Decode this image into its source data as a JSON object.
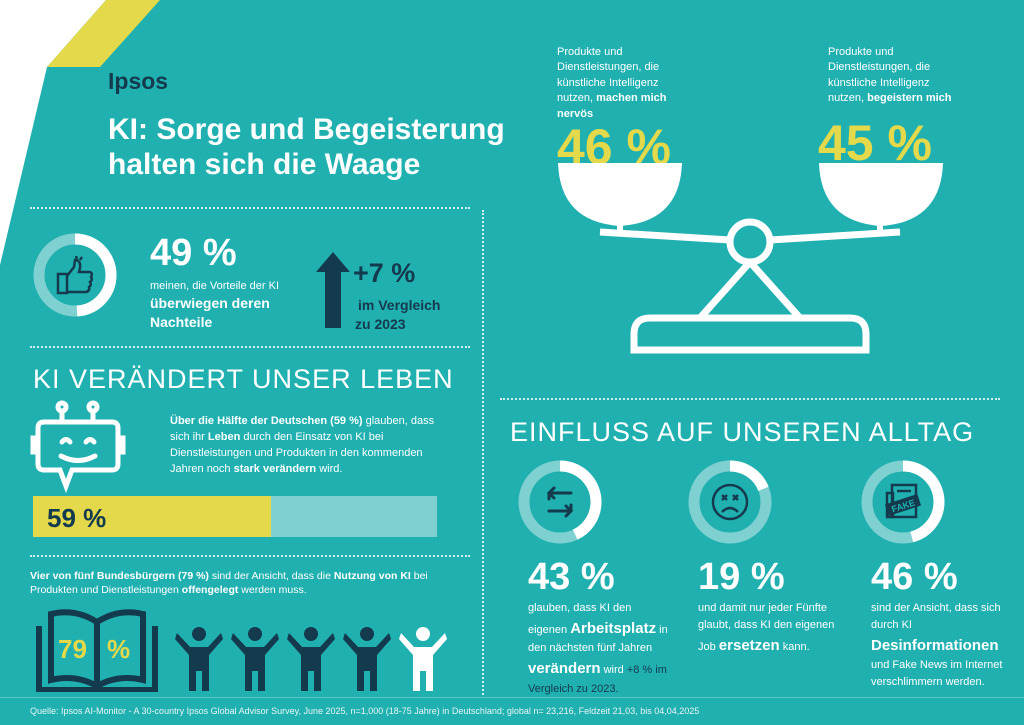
{
  "colors": {
    "background": "#20b0b0",
    "accent": "#e3d94a",
    "dark": "#143a4e",
    "light": "#7fd0d0",
    "white": "#ffffff"
  },
  "brand": "Ipsos",
  "title": {
    "line1": "KI: Sorge und Begeisterung",
    "line2": "halten sich die Waage"
  },
  "scale": {
    "left": {
      "label": "Produkte und Dienstleistungen, die künstliche Intelligenz nutzen,",
      "bold": "machen mich nervös",
      "value": "46 %"
    },
    "right": {
      "label": "Produkte und Dienstleistungen, die künstliche Intelligenz nutzen,",
      "bold": "begeistern mich",
      "value": "45 %"
    }
  },
  "benefits": {
    "value": "49 %",
    "percent": 49,
    "icon": "thumbs-up-icon",
    "text": "meinen, die Vorteile der KI",
    "bold1": "überwiegen deren",
    "bold2": "Nachteile",
    "change": "+7 %",
    "change_line1": "im Vergleich",
    "change_line2": "zu 2023"
  },
  "life": {
    "heading": "KI VERÄNDERT UNSER LEBEN",
    "icon": "robot-chat-icon",
    "p": [
      {
        "t": "Über die Hälfte der Deutschen (59 %)",
        "b": true
      },
      {
        "t": " glauben, dass sich ihr ",
        "b": false
      },
      {
        "t": "Leben",
        "b": true
      },
      {
        "t": " durch den Einsatz von KI bei Dienstleistungen und Produkten in den kommenden Jahren noch ",
        "b": false
      },
      {
        "t": "stark verändern",
        "b": true
      },
      {
        "t": " wird.",
        "b": false
      }
    ],
    "bar_label": "59 %",
    "bar_percent": 59
  },
  "disclosure": {
    "p": [
      {
        "t": "Vier von fünf Bundesbürgern (79 %)",
        "b": true
      },
      {
        "t": " sind der Ansicht, dass die ",
        "b": false
      },
      {
        "t": "Nutzung von KI",
        "b": true
      },
      {
        "t": " bei Produkten und Dienstleistungen ",
        "b": false
      },
      {
        "t": "offengelegt",
        "b": true
      },
      {
        "t": " werden muss.",
        "b": false
      }
    ],
    "book_value": "79",
    "book_unit": "%",
    "people_highlighted": 4,
    "people_total": 5
  },
  "influence": {
    "heading": "EINFLUSS AUF UNSEREN ALLTAG",
    "items": [
      {
        "icon": "swap-arrows-icon",
        "percent": 43,
        "value": "43 %",
        "p": [
          {
            "t": "glauben, dass KI den eigenen ",
            "b": false
          },
          {
            "t": "Arbeitsplatz",
            "b": true,
            "big": true
          },
          {
            "t": " in den nächsten fünf Jahren ",
            "b": false
          },
          {
            "t": "verändern",
            "b": true,
            "big": true
          },
          {
            "t": " wird ",
            "b": false
          },
          {
            "t": "+8 % im Vergleich zu 2023.",
            "b": false,
            "dark": true
          }
        ]
      },
      {
        "icon": "dizzy-sad-face-icon",
        "percent": 19,
        "value": "19 %",
        "p": [
          {
            "t": "und damit nur jeder Fünfte glaubt, dass KI den eigenen Job ",
            "b": false
          },
          {
            "t": "ersetzen",
            "b": true,
            "big": true
          },
          {
            "t": " kann.",
            "b": false
          }
        ]
      },
      {
        "icon": "fake-news-icon",
        "percent": 46,
        "value": "46 %",
        "p": [
          {
            "t": "sind der Ansicht, dass sich durch KI ",
            "b": false
          },
          {
            "t": "Desinformationen",
            "b": true,
            "big": true
          },
          {
            "t": " und Fake News im Internet verschlimmern werden.",
            "b": false
          }
        ]
      }
    ]
  },
  "source": "Quelle: Ipsos AI-Monitor - A 30-country Ipsos Global Advisor Survey, June 2025, n=1,000 (18-75 Jahre) in Deutschland; global n= 23,216,  Feldzeit 21,03, bis 04,04,2025"
}
